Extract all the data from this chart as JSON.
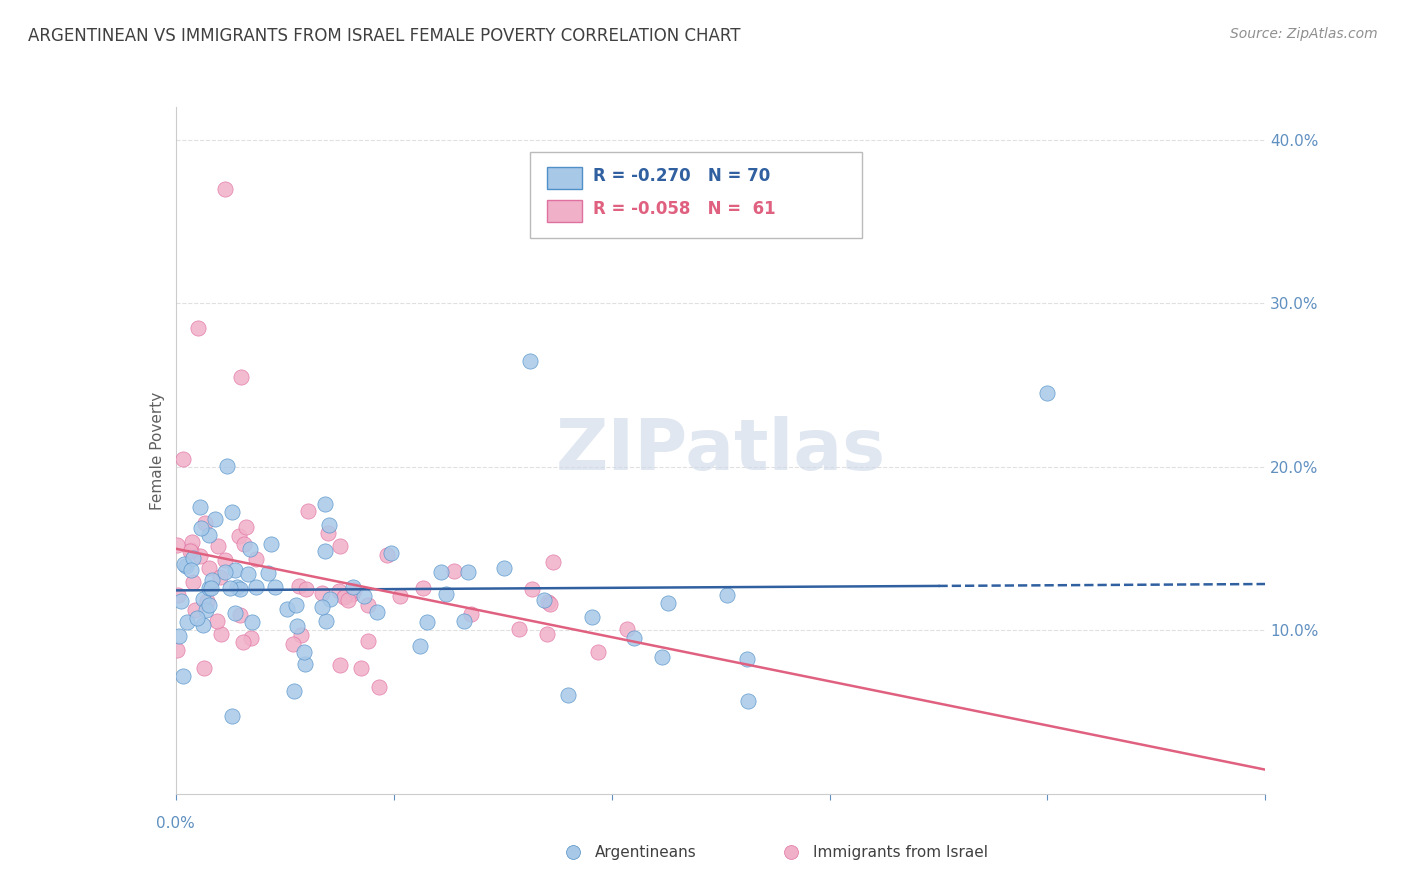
{
  "title": "ARGENTINEAN VS IMMIGRANTS FROM ISRAEL FEMALE POVERTY CORRELATION CHART",
  "source": "Source: ZipAtlas.com",
  "ylabel": "Female Poverty",
  "xlim": [
    0.0,
    0.2
  ],
  "ylim": [
    0.0,
    0.42
  ],
  "watermark": "ZIPatlas",
  "series": [
    {
      "name": "Argentineans",
      "R": -0.27,
      "N": 70,
      "color": "#a8c8e8",
      "edge_color": "#5090c8",
      "marker_size": 120
    },
    {
      "name": "Immigrants from Israel",
      "R": -0.058,
      "N": 61,
      "color": "#f0b0c8",
      "edge_color": "#e070a0",
      "marker_size": 120
    }
  ],
  "title_color": "#404040",
  "axis_color": "#6090c0",
  "grid_color": "#e0e0e0",
  "background_color": "#ffffff",
  "line_color_arg": "#3060a0",
  "line_color_isr": "#e06080"
}
